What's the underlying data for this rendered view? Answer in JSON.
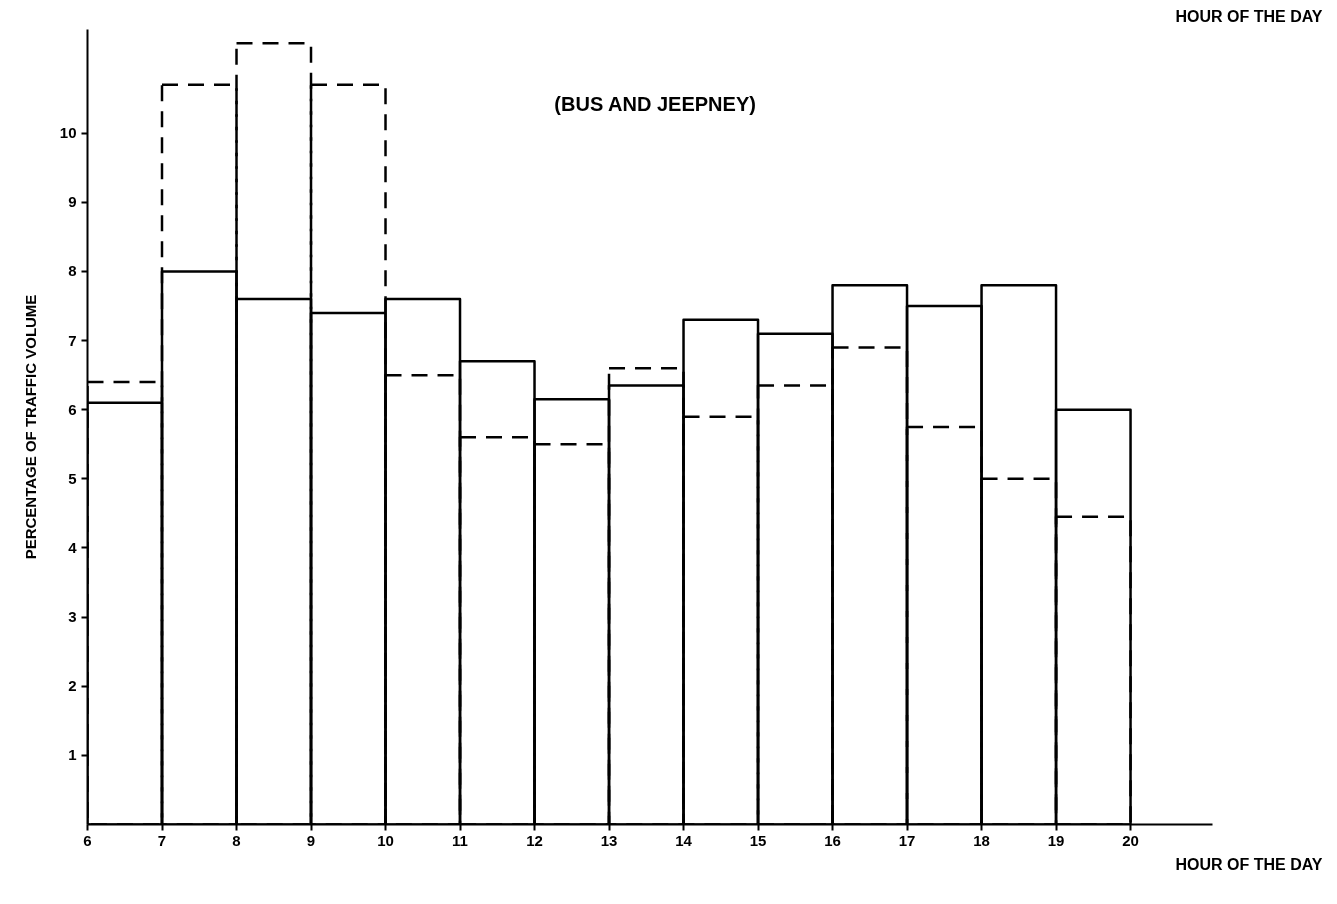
{
  "chart_data": {
    "type": "histogram",
    "title": "(BUS AND JEEPNEY)",
    "xlabel": "HOUR OF THE DAY",
    "ylabel": "PERCENTAGE OF TRAFFIC VOLUME",
    "annotations": [
      "HOUR OF THE DAY"
    ],
    "bins": [
      6,
      7,
      8,
      9,
      10,
      11,
      12,
      13,
      14,
      15,
      16,
      17,
      18,
      19,
      20
    ],
    "series": [
      {
        "color": "#000000",
        "line_style": "solid",
        "values": [
          6.1,
          8.0,
          7.6,
          7.4,
          7.6,
          6.7,
          6.15,
          6.35,
          7.3,
          7.1,
          7.8,
          7.5,
          7.8,
          6.0
        ]
      },
      {
        "color": "#000000",
        "line_style": "dashed",
        "values": [
          6.4,
          10.7,
          11.3,
          10.7,
          6.5,
          5.6,
          5.5,
          6.6,
          5.9,
          6.35,
          6.9,
          5.75,
          5.0,
          4.45
        ]
      }
    ],
    "xlim": [
      6,
      21.1
    ],
    "ylim": [
      0,
      11.5
    ],
    "xticks": [
      6,
      7,
      8,
      9,
      10,
      11,
      12,
      13,
      14,
      15,
      16,
      17,
      18,
      19,
      20
    ],
    "yticks": [
      1,
      2,
      3,
      4,
      5,
      6,
      7,
      8,
      9,
      10
    ]
  }
}
